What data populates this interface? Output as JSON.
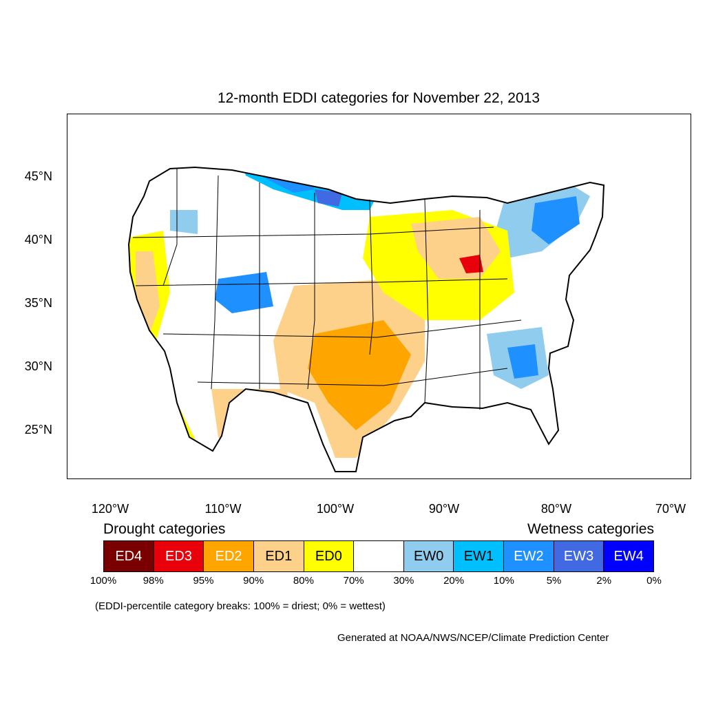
{
  "title": "12-month EDDI categories for November 22, 2013",
  "latitude_labels": [
    "45°N",
    "40°N",
    "35°N",
    "30°N",
    "25°N"
  ],
  "longitude_labels": [
    "120°W",
    "110°W",
    "100°W",
    "90°W",
    "80°W",
    "70°W"
  ],
  "legend": {
    "drought_heading": "Drought categories",
    "wetness_heading": "Wetness categories",
    "categories": [
      {
        "label": "ED4",
        "color": "#7a0000",
        "text_color": "#ffffff"
      },
      {
        "label": "ED3",
        "color": "#e8000b",
        "text_color": "#ffffff"
      },
      {
        "label": "ED2",
        "color": "#ffa500",
        "text_color": "#ffffff"
      },
      {
        "label": "ED1",
        "color": "#fdd18a",
        "text_color": "#000000"
      },
      {
        "label": "ED0",
        "color": "#ffff00",
        "text_color": "#000000"
      },
      {
        "label": "",
        "color": "#ffffff",
        "text_color": "#000000"
      },
      {
        "label": "EW0",
        "color": "#90ccee",
        "text_color": "#000000"
      },
      {
        "label": "EW1",
        "color": "#00bfff",
        "text_color": "#000000"
      },
      {
        "label": "EW2",
        "color": "#1e90ff",
        "text_color": "#ffffff"
      },
      {
        "label": "EW3",
        "color": "#4169e1",
        "text_color": "#ffffff"
      },
      {
        "label": "EW4",
        "color": "#0000ff",
        "text_color": "#ffffff"
      }
    ],
    "breaks": [
      "100%",
      "98%",
      "95%",
      "90%",
      "80%",
      "70%",
      "30%",
      "20%",
      "10%",
      "5%",
      "2%",
      "0%"
    ]
  },
  "note": "(EDDI-percentile category breaks: 100% = driest; 0% = wettest)",
  "credit": "Generated at NOAA/NWS/NCEP/Climate Prediction Center"
}
